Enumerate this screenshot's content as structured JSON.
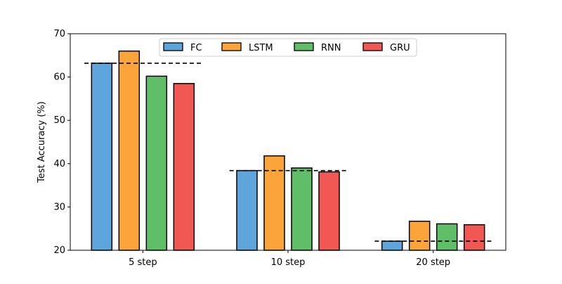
{
  "chart_data": {
    "type": "bar",
    "categories": [
      "5 step",
      "10 step",
      "20 step"
    ],
    "series": [
      {
        "name": "FC",
        "color": "#5DA5DA",
        "values": [
          63.2,
          38.4,
          22.1
        ]
      },
      {
        "name": "LSTM",
        "color": "#FAA43A",
        "values": [
          66.0,
          41.8,
          26.7
        ]
      },
      {
        "name": "RNN",
        "color": "#60BD68",
        "values": [
          60.2,
          39.0,
          26.1
        ]
      },
      {
        "name": "GRU",
        "color": "#F15854",
        "values": [
          58.5,
          38.1,
          25.9
        ]
      }
    ],
    "reference_lines": [
      63.2,
      38.4,
      22.1
    ],
    "xlabel": "",
    "ylabel": "Test Accuracy (%)",
    "ylim": [
      20,
      70
    ],
    "yticks": [
      20,
      30,
      40,
      50,
      60,
      70
    ],
    "grid": false,
    "legend_position": "top-center"
  }
}
